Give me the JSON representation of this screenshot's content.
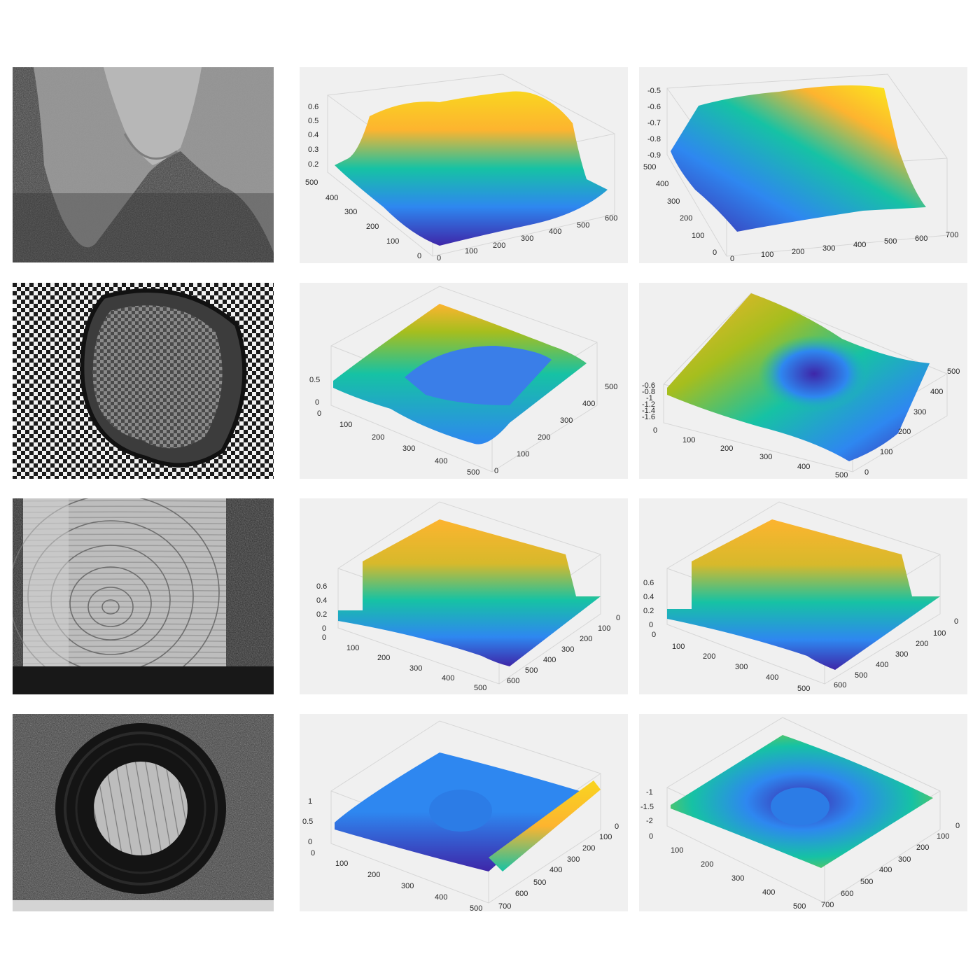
{
  "figure": {
    "rows": [
      {
        "row_id": "sponge",
        "photo_subject": "grey foam sponge with V-shaped notch on speckled background",
        "plots": [
          {
            "panel_id": "r1c2",
            "z_ticks": [
              "0.2",
              "0.3",
              "0.4",
              "0.5",
              "0.6"
            ],
            "y_ticks": [
              "0",
              "100",
              "200",
              "300",
              "400",
              "500"
            ],
            "x_ticks": [
              "0",
              "100",
              "200",
              "300",
              "400",
              "500",
              "600"
            ]
          },
          {
            "panel_id": "r1c3",
            "z_ticks": [
              "-0.9",
              "-0.8",
              "-0.7",
              "-0.6",
              "-0.5"
            ],
            "y_ticks": [
              "0",
              "100",
              "200",
              "300",
              "400",
              "500"
            ],
            "x_ticks": [
              "0",
              "100",
              "200",
              "300",
              "400",
              "500",
              "600",
              "700"
            ]
          }
        ]
      },
      {
        "row_id": "checkerboard",
        "photo_subject": "checkerboard pattern with dome-shaped deformation",
        "plots": [
          {
            "panel_id": "r2c2",
            "z_ticks": [
              "0",
              "0.5"
            ],
            "x_ticks": [
              "0",
              "100",
              "200",
              "300",
              "400",
              "500"
            ],
            "y_ticks": [
              "0",
              "100",
              "200",
              "300",
              "400",
              "500"
            ]
          },
          {
            "panel_id": "r2c3",
            "z_ticks": [
              "-1.6",
              "-1.4",
              "-1.2",
              "-1",
              "-0.8",
              "-0.6"
            ],
            "x_ticks": [
              "0",
              "100",
              "200",
              "300",
              "400",
              "500"
            ],
            "y_ticks": [
              "0",
              "100",
              "200",
              "300",
              "400",
              "500"
            ]
          }
        ]
      },
      {
        "row_id": "wood",
        "photo_subject": "wooden block end grain with growth rings",
        "plots": [
          {
            "panel_id": "r3c2",
            "z_ticks": [
              "0",
              "0.2",
              "0.4",
              "0.6"
            ],
            "x_ticks": [
              "0",
              "100",
              "200",
              "300",
              "400",
              "500"
            ],
            "y_ticks": [
              "0",
              "100",
              "200",
              "300",
              "400",
              "500",
              "600"
            ]
          },
          {
            "panel_id": "r3c3",
            "z_ticks": [
              "0",
              "0.2",
              "0.4",
              "0.6"
            ],
            "x_ticks": [
              "0",
              "100",
              "200",
              "300",
              "400",
              "500"
            ],
            "y_ticks": [
              "0",
              "100",
              "200",
              "300",
              "400",
              "500",
              "600"
            ]
          }
        ]
      },
      {
        "row_id": "ring",
        "photo_subject": "black rubber ring over wood on speckled background",
        "plots": [
          {
            "panel_id": "r4c2",
            "z_ticks": [
              "0",
              "0.5",
              "1"
            ],
            "x_ticks": [
              "0",
              "100",
              "200",
              "300",
              "400",
              "500"
            ],
            "y_ticks": [
              "0",
              "100",
              "200",
              "300",
              "400",
              "500",
              "600",
              "700"
            ]
          },
          {
            "panel_id": "r4c3",
            "z_ticks": [
              "-2",
              "-1.5",
              "-1"
            ],
            "x_ticks": [
              "0",
              "100",
              "200",
              "300",
              "400",
              "500"
            ],
            "y_ticks": [
              "0",
              "100",
              "200",
              "300",
              "400",
              "500",
              "600",
              "700"
            ]
          }
        ]
      }
    ]
  },
  "chart_data": [
    {
      "type": "surface3d",
      "panel": "r1c2",
      "zlim": [
        0.2,
        0.6
      ],
      "xlim": [
        0,
        600
      ],
      "ylim": [
        0,
        500
      ],
      "grid": true,
      "colormap": "parula"
    },
    {
      "type": "surface3d",
      "panel": "r1c3",
      "zlim": [
        -0.9,
        -0.5
      ],
      "xlim": [
        0,
        700
      ],
      "ylim": [
        0,
        500
      ],
      "grid": true,
      "colormap": "parula"
    },
    {
      "type": "surface3d",
      "panel": "r2c2",
      "zlim": [
        0,
        0.5
      ],
      "xlim": [
        0,
        500
      ],
      "ylim": [
        0,
        500
      ],
      "grid": true,
      "colormap": "parula"
    },
    {
      "type": "surface3d",
      "panel": "r2c3",
      "zlim": [
        -1.6,
        -0.6
      ],
      "xlim": [
        0,
        500
      ],
      "ylim": [
        0,
        500
      ],
      "grid": true,
      "colormap": "parula"
    },
    {
      "type": "surface3d",
      "panel": "r3c2",
      "zlim": [
        0,
        0.6
      ],
      "xlim": [
        0,
        500
      ],
      "ylim": [
        0,
        600
      ],
      "grid": true,
      "colormap": "parula"
    },
    {
      "type": "surface3d",
      "panel": "r3c3",
      "zlim": [
        0,
        0.6
      ],
      "xlim": [
        0,
        500
      ],
      "ylim": [
        0,
        600
      ],
      "grid": true,
      "colormap": "parula"
    },
    {
      "type": "surface3d",
      "panel": "r4c2",
      "zlim": [
        0,
        1
      ],
      "xlim": [
        0,
        500
      ],
      "ylim": [
        0,
        700
      ],
      "grid": true,
      "colormap": "parula"
    },
    {
      "type": "surface3d",
      "panel": "r4c3",
      "zlim": [
        -2,
        -1
      ],
      "xlim": [
        0,
        500
      ],
      "ylim": [
        0,
        700
      ],
      "grid": true,
      "colormap": "parula"
    }
  ],
  "colors": {
    "background": "#ffffff",
    "plot_background": "#f0f0f0",
    "parula_low": "#3e26a8",
    "parula_mid_blue": "#2e87f0",
    "parula_mid": "#16c2a4",
    "parula_high": "#fdb42f",
    "parula_top": "#f9fb15"
  }
}
